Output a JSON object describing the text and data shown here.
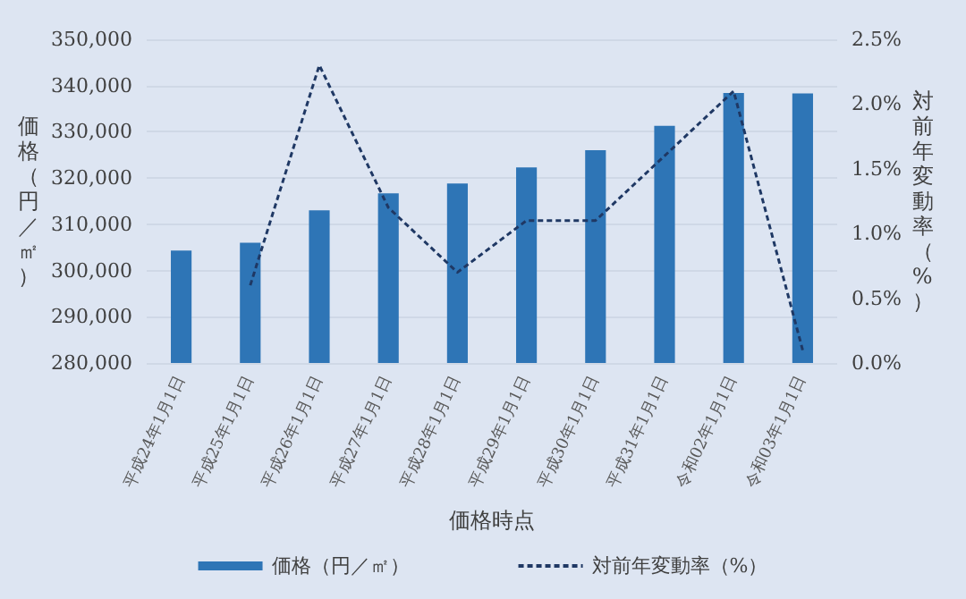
{
  "chart_data": {
    "type": "bar",
    "categories": [
      "平成24年1月1日",
      "平成25年1月1日",
      "平成26年1月1日",
      "平成27年1月1日",
      "平成28年1月1日",
      "平成29年1月1日",
      "平成30年1月1日",
      "平成31年1月1日",
      "令和02年1月1日",
      "令和03年1月1日"
    ],
    "series": [
      {
        "name": "価格（円／㎡）",
        "color": "#2e75b6",
        "values": [
          304300,
          306000,
          313000,
          316700,
          318800,
          322300,
          326000,
          331300,
          338400,
          338300
        ]
      },
      {
        "name": "対前年変動率（%）",
        "type": "line",
        "axis": "y2",
        "color": "#1f3864",
        "line_style": "dashed",
        "marker": "none",
        "values": [
          null,
          0.6,
          2.3,
          1.2,
          0.7,
          1.1,
          1.1,
          1.6,
          2.1,
          0.1
        ]
      }
    ],
    "xlabel": "価格時点",
    "ylabel": "価格（円／㎡）",
    "y2label": "対前年変動率（%）",
    "ylim": [
      280000,
      350000
    ],
    "yticks": [
      {
        "value": 280000,
        "label": "280,000"
      },
      {
        "value": 290000,
        "label": "290,000"
      },
      {
        "value": 300000,
        "label": "300,000"
      },
      {
        "value": 310000,
        "label": "310,000"
      },
      {
        "value": 320000,
        "label": "320,000"
      },
      {
        "value": 330000,
        "label": "330,000"
      },
      {
        "value": 340000,
        "label": "340,000"
      },
      {
        "value": 350000,
        "label": "350,000"
      }
    ],
    "y2lim": [
      0,
      2.5
    ],
    "y2ticks": [
      {
        "value": 0,
        "label": "0.0%"
      },
      {
        "value": 0.5,
        "label": "0.5%"
      },
      {
        "value": 1,
        "label": "1.0%"
      },
      {
        "value": 1.5,
        "label": "1.5%"
      },
      {
        "value": 2,
        "label": "2.0%"
      },
      {
        "value": 2.5,
        "label": "2.5%"
      }
    ],
    "grid": "y",
    "legend": "bottom"
  }
}
